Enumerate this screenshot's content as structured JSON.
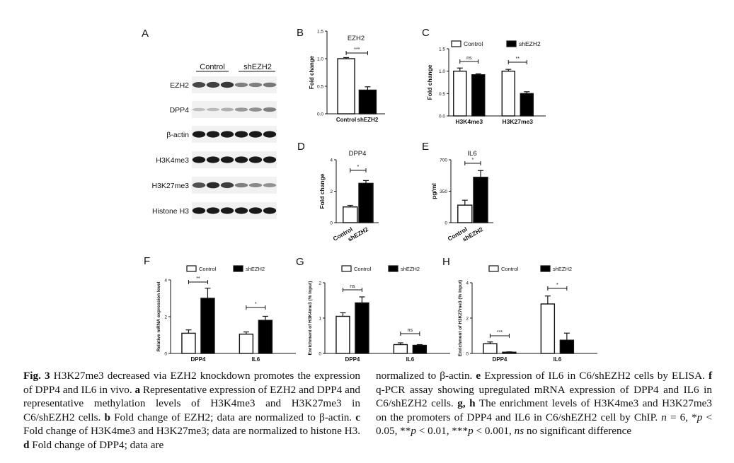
{
  "figure": {
    "panel_letters": {
      "A": "A",
      "B": "B",
      "C": "C",
      "D": "D",
      "E": "E",
      "F": "F",
      "G": "G",
      "H": "H"
    },
    "western_blot": {
      "group_labels": [
        "Control",
        "shEZH2"
      ],
      "rows": [
        "EZH2",
        "DPP4",
        "β-actin",
        "H3K4me3",
        "H3K27me3",
        "Histone H3"
      ],
      "band_intensity": [
        [
          0.75,
          0.8,
          0.85,
          0.45,
          0.45,
          0.5
        ],
        [
          0.1,
          0.12,
          0.18,
          0.3,
          0.35,
          0.45
        ],
        [
          1.0,
          1.0,
          1.0,
          1.0,
          1.0,
          1.0
        ],
        [
          1.0,
          1.0,
          1.0,
          1.0,
          1.0,
          1.0
        ],
        [
          0.7,
          0.9,
          0.8,
          0.45,
          0.4,
          0.35
        ],
        [
          1.0,
          1.0,
          1.0,
          1.0,
          1.0,
          1.0
        ]
      ]
    },
    "legend": {
      "control": "Control",
      "shezh2": "shEZH2"
    }
  },
  "chart_data": [
    {
      "panel": "B",
      "type": "bar",
      "title": "EZH2",
      "ylabel": "Fold change",
      "ylim": [
        0,
        1.5
      ],
      "yticks": [
        "0.0",
        "0.5",
        "1.0",
        "1.5"
      ],
      "categories": [
        "Control",
        "shEZH2"
      ],
      "values": [
        1.0,
        0.43
      ],
      "errors": [
        0.02,
        0.06
      ],
      "fills": [
        "#ffffff",
        "#000000"
      ],
      "significance": "***"
    },
    {
      "panel": "C",
      "type": "bar",
      "ylabel": "Fold change",
      "ylim": [
        0,
        1.5
      ],
      "yticks": [
        "0.0",
        "0.5",
        "1.0",
        "1.5"
      ],
      "categories": [
        "H3K4me3",
        "H3K27me3"
      ],
      "series": [
        {
          "name": "Control",
          "values": [
            1.0,
            1.0
          ],
          "errors": [
            0.07,
            0.04
          ]
        },
        {
          "name": "shEZH2",
          "values": [
            0.92,
            0.5
          ],
          "errors": [
            0.02,
            0.04
          ]
        }
      ],
      "significance": [
        "ns",
        "**"
      ]
    },
    {
      "panel": "D",
      "type": "bar",
      "title": "DPP4",
      "ylabel": "Fold change",
      "ylim": [
        0,
        4
      ],
      "yticks": [
        "0",
        "2",
        "4"
      ],
      "categories": [
        "Control",
        "shEZH2"
      ],
      "values": [
        1.0,
        2.5
      ],
      "errors": [
        0.1,
        0.18
      ],
      "fills": [
        "#ffffff",
        "#000000"
      ],
      "significance": "*"
    },
    {
      "panel": "E",
      "type": "bar",
      "title": "IL6",
      "ylabel": "pg/ml",
      "ylim": [
        0,
        700
      ],
      "yticks": [
        "0",
        "350",
        "700"
      ],
      "categories": [
        "Control",
        "shEZH2"
      ],
      "values": [
        195,
        505
      ],
      "errors": [
        55,
        75
      ],
      "fills": [
        "#ffffff",
        "#000000"
      ],
      "significance": "*"
    },
    {
      "panel": "F",
      "type": "bar",
      "ylabel": "Relative mRNA expression level",
      "ylim": [
        0,
        4
      ],
      "yticks": [
        "0",
        "2",
        "4"
      ],
      "categories": [
        "DPP4",
        "IL6"
      ],
      "series": [
        {
          "name": "Control",
          "values": [
            1.1,
            1.05
          ],
          "errors": [
            0.18,
            0.12
          ]
        },
        {
          "name": "shEZH2",
          "values": [
            3.0,
            1.8
          ],
          "errors": [
            0.55,
            0.22
          ]
        }
      ],
      "significance": [
        "**",
        "*"
      ]
    },
    {
      "panel": "G",
      "type": "bar",
      "ylabel": "Enrichment of H3K4me3 (% Input)",
      "ylim": [
        0,
        2
      ],
      "yticks": [
        "0",
        "1",
        "2"
      ],
      "categories": [
        "DPP4",
        "IL6"
      ],
      "series": [
        {
          "name": "Control",
          "values": [
            1.05,
            0.25
          ],
          "errors": [
            0.1,
            0.05
          ]
        },
        {
          "name": "shEZH2",
          "values": [
            1.43,
            0.23
          ],
          "errors": [
            0.17,
            0.02
          ]
        }
      ],
      "significance": [
        "ns",
        "ns"
      ]
    },
    {
      "panel": "H",
      "type": "bar",
      "ylabel": "Enrichment of H3K27me3 (% Input)",
      "ylim": [
        0,
        4
      ],
      "yticks": [
        "0",
        "2",
        "4"
      ],
      "categories": [
        "DPP4",
        "IL6"
      ],
      "series": [
        {
          "name": "Control",
          "values": [
            0.55,
            2.8
          ],
          "errors": [
            0.1,
            0.45
          ]
        },
        {
          "name": "shEZH2",
          "values": [
            0.07,
            0.75
          ],
          "errors": [
            0.02,
            0.4
          ]
        }
      ],
      "significance": [
        "***",
        "*"
      ]
    }
  ],
  "caption": {
    "fig_label": "Fig. 3",
    "left": [
      {
        "t": "H3K27me3 decreased via EZH2 knockdown promotes the expression of DPP4 and IL6 in vivo. "
      },
      {
        "b": "a"
      },
      {
        "t": " Representative expression of EZH2 and DPP4 and representative methylation levels of H3K4me3 and H3K27me3 in C6/shEZH2 cells. "
      },
      {
        "b": "b"
      },
      {
        "t": " Fold change of EZH2; data are normalized to β-actin. "
      },
      {
        "b": "c"
      },
      {
        "t": " Fold change of H3K4me3 and H3K27me3; data are normalized to histone H3. "
      },
      {
        "b": "d"
      },
      {
        "t": " Fold change of DPP4; data are"
      }
    ],
    "right": [
      {
        "t": "normalized to β-actin. "
      },
      {
        "b": "e"
      },
      {
        "t": " Expression of IL6 in C6/shEZH2 cells by ELISA. "
      },
      {
        "b": "f"
      },
      {
        "t": " q-PCR assay showing upregulated mRNA expression of DPP4 and IL6 in C6/shEZH2 cells. "
      },
      {
        "b": "g, h"
      },
      {
        "t": " The enrichment levels of H3K4me3 and H3K27me3 on the promoters of DPP4 and IL6 in C6/shEZH2 cell by ChIP. "
      },
      {
        "i": "n"
      },
      {
        "t": " = 6, *"
      },
      {
        "i": "p"
      },
      {
        "t": " < 0.05, **"
      },
      {
        "i": "p"
      },
      {
        "t": " < 0.01, ***"
      },
      {
        "i": "p"
      },
      {
        "t": " < 0.001, "
      },
      {
        "i": "ns"
      },
      {
        "t": " no significant difference"
      }
    ]
  }
}
